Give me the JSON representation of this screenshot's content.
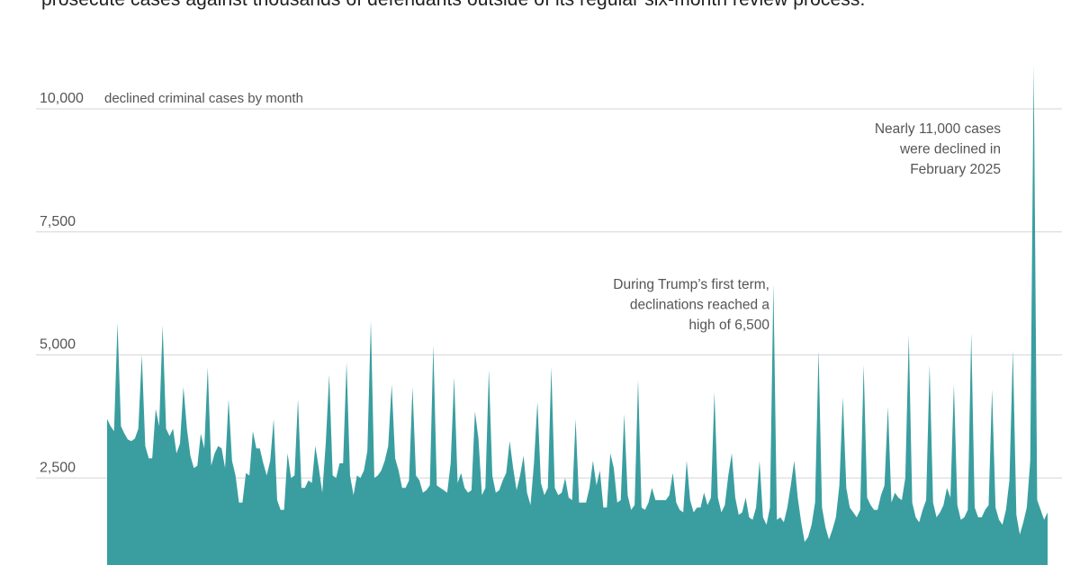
{
  "header": {
    "text": "prosecute cases against thousands of defendants outside of its regular six-month review process."
  },
  "chart_data": {
    "type": "area",
    "ylabel": "declined criminal cases by month",
    "ylim": [
      0,
      10000
    ],
    "y_ticks": [
      {
        "value": 2500,
        "label": "2,500"
      },
      {
        "value": 5000,
        "label": "5,000"
      },
      {
        "value": 7500,
        "label": "7,500"
      },
      {
        "value": 10000,
        "label": "10,000"
      }
    ],
    "grid": true,
    "color": "#3a9ea0",
    "annotations": [
      {
        "lines": [
          "During Trump’s first term,",
          "declinations reached a",
          "high of 6,500"
        ],
        "target_value": 6500
      },
      {
        "lines": [
          "Nearly 11,000 cases",
          "were declined in",
          "February 2025"
        ],
        "target_value": 11000
      }
    ],
    "values": [
      3700,
      3550,
      3450,
      5650,
      3550,
      3400,
      3280,
      3250,
      3300,
      3500,
      5000,
      3150,
      2900,
      2900,
      3900,
      3550,
      5600,
      3500,
      3350,
      3500,
      3000,
      3200,
      4350,
      3500,
      2950,
      2700,
      2750,
      3400,
      3100,
      4750,
      2750,
      3000,
      3150,
      3100,
      2700,
      4100,
      2850,
      2550,
      2000,
      2000,
      2600,
      2550,
      3450,
      3100,
      3100,
      2800,
      2550,
      2850,
      3700,
      2050,
      1850,
      1850,
      3000,
      2500,
      2550,
      4100,
      2300,
      2300,
      2450,
      2400,
      3150,
      2700,
      2200,
      3200,
      4600,
      2550,
      2500,
      2800,
      2800,
      4850,
      2550,
      2150,
      2550,
      2500,
      2650,
      3050,
      5700,
      2500,
      2550,
      2650,
      2850,
      3150,
      4400,
      2900,
      2650,
      2300,
      2300,
      2450,
      4350,
      2550,
      2450,
      2200,
      2250,
      2350,
      5200,
      2350,
      2300,
      2250,
      2200,
      2800,
      4550,
      2400,
      2600,
      2300,
      2200,
      2250,
      3850,
      3300,
      2150,
      2300,
      4700,
      2550,
      2200,
      2250,
      2450,
      2600,
      3250,
      2700,
      2250,
      2550,
      2950,
      2200,
      1950,
      2800,
      4050,
      2400,
      2150,
      2300,
      4750,
      2300,
      2150,
      2200,
      2500,
      2100,
      2050,
      3700,
      2000,
      2000,
      2000,
      2300,
      2850,
      2350,
      2650,
      1900,
      1900,
      3000,
      2700,
      2000,
      2050,
      3800,
      2150,
      1850,
      1950,
      4500,
      1900,
      1850,
      2000,
      2300,
      2050,
      2050,
      2050,
      2050,
      2150,
      2600,
      2000,
      1850,
      1800,
      2850,
      2050,
      1800,
      1900,
      1900,
      2200,
      1950,
      2100,
      4250,
      2100,
      1800,
      1950,
      2550,
      3000,
      2100,
      1750,
      1800,
      2100,
      1700,
      1650,
      1900,
      2850,
      1700,
      1550,
      1900,
      6450,
      1650,
      1700,
      1600,
      1900,
      2350,
      2850,
      2100,
      1600,
      1200,
      1300,
      1550,
      2000,
      5100,
      1900,
      1500,
      1250,
      1450,
      1700,
      2350,
      4150,
      2300,
      1900,
      1800,
      1700,
      1850,
      4800,
      2100,
      1950,
      1850,
      1850,
      2150,
      2350,
      3950,
      2000,
      2200,
      2100,
      2050,
      2500,
      5400,
      2000,
      1700,
      1600,
      1850,
      2050,
      4800,
      2000,
      1700,
      1800,
      1950,
      2300,
      2100,
      4400,
      1950,
      1650,
      1700,
      1850,
      5450,
      1900,
      1700,
      1700,
      1850,
      1950,
      4300,
      1900,
      1650,
      1550,
      1850,
      2450,
      5100,
      1750,
      1350,
      1600,
      1900,
      2850,
      10900,
      2050,
      1850,
      1650,
      1800
    ]
  }
}
